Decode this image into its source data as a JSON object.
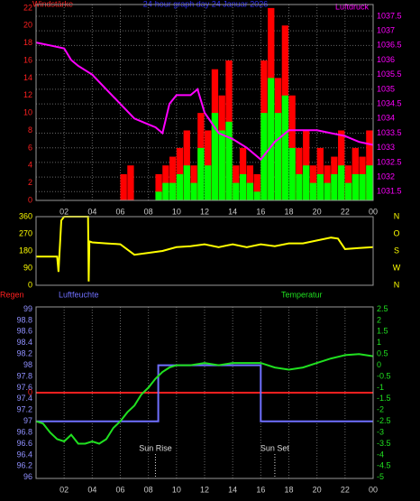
{
  "chart_data": [
    {
      "type": "bar-line",
      "title": "24-hour graph day 24 Januar 2026",
      "ylabel": "Windstärke",
      "y2label": "Luftdruck",
      "xlim": [
        0,
        24
      ],
      "xticks": [
        {
          "value": 2,
          "label": "02"
        },
        {
          "value": 4,
          "label": "04"
        },
        {
          "value": 6,
          "label": "06"
        },
        {
          "value": 8,
          "label": "08"
        },
        10,
        12,
        14,
        16,
        18,
        20,
        22,
        {
          "value": 24,
          "label": "00"
        }
      ],
      "ylim": [
        0,
        22.4
      ],
      "yticks": [
        0,
        2,
        4,
        6,
        8,
        10,
        12,
        14,
        16,
        18,
        20,
        22
      ],
      "y2lim": [
        1031.2,
        1037.9
      ],
      "y2ticks": [
        1031.5,
        1032,
        1032.5,
        1033,
        1033.5,
        1034,
        1034.5,
        1035,
        1035.5,
        1036,
        1036.5,
        1037,
        1037.5
      ],
      "grid": true,
      "bar_x": [
        0,
        0.5,
        1,
        1.5,
        2,
        2.5,
        3,
        3.5,
        4,
        4.5,
        5,
        5.5,
        6,
        6.5,
        7,
        7.5,
        8,
        8.5,
        9,
        9.5,
        10,
        10.5,
        11,
        11.5,
        12,
        12.5,
        13,
        13.5,
        14,
        14.5,
        15,
        15.5,
        16,
        16.5,
        17,
        17.5,
        18,
        18.5,
        19,
        19.5,
        20,
        20.5,
        21,
        21.5,
        22,
        22.5,
        23,
        23.5
      ],
      "series": [
        {
          "name": "Böen",
          "color": "#ff0000",
          "kind": "bar",
          "values": [
            0,
            0,
            0,
            0,
            0,
            0,
            0,
            0,
            0,
            0,
            0,
            0,
            3,
            4,
            0,
            0,
            0,
            3,
            4,
            5,
            6,
            8,
            4,
            10,
            8,
            15,
            12,
            16,
            4,
            6,
            4,
            3,
            16,
            22,
            14,
            20,
            12,
            6,
            8,
            4,
            6,
            4,
            5,
            8,
            4,
            6,
            5,
            8
          ]
        },
        {
          "name": "Wind",
          "color": "#00ff00",
          "kind": "bar",
          "values": [
            0,
            0,
            0,
            0,
            0,
            0,
            0,
            0,
            0,
            0,
            0,
            0,
            0,
            0,
            0,
            0,
            0,
            1,
            2,
            2,
            3,
            4,
            2,
            6,
            4,
            10,
            8,
            9,
            2,
            3,
            2,
            1,
            10,
            14,
            10,
            12,
            6,
            3,
            4,
            2,
            3,
            2,
            3,
            4,
            2,
            3,
            3,
            4
          ]
        },
        {
          "name": "Luftdruck",
          "color": "#ff00ff",
          "kind": "line",
          "axis": "y2",
          "x": [
            0,
            1,
            2,
            2.5,
            3,
            4,
            5,
            6,
            7,
            8,
            8.5,
            9,
            9.5,
            10,
            11,
            11.5,
            12,
            13,
            14,
            15,
            16,
            17,
            18,
            19,
            20,
            21,
            22,
            23,
            24
          ],
          "values": [
            1036.6,
            1036.5,
            1036.4,
            1036.0,
            1035.8,
            1035.5,
            1035.0,
            1034.5,
            1034.0,
            1033.8,
            1033.7,
            1033.5,
            1034.5,
            1034.8,
            1034.8,
            1035.0,
            1034.2,
            1033.5,
            1033.3,
            1033.0,
            1032.6,
            1033.2,
            1033.6,
            1033.6,
            1033.6,
            1033.5,
            1033.4,
            1033.2,
            1033.1
          ]
        }
      ]
    },
    {
      "type": "line",
      "xlim": [
        0,
        24
      ],
      "ylim": [
        0,
        360
      ],
      "yticks": [
        0,
        90,
        180,
        270,
        360
      ],
      "y2ticks_text": [
        "N",
        "W",
        "S",
        "O",
        "N"
      ],
      "series": [
        {
          "name": "Windrichtung",
          "color": "#ffff00",
          "x": [
            0,
            1.5,
            1.6,
            1.8,
            2,
            3.7,
            3.75,
            3.8,
            4,
            5,
            6,
            7,
            8,
            9,
            10,
            11,
            12,
            13,
            14,
            15,
            16,
            17,
            18,
            19,
            20,
            21,
            21.5,
            22,
            23,
            24
          ],
          "values": [
            150,
            150,
            70,
            340,
            360,
            360,
            20,
            230,
            225,
            220,
            215,
            160,
            170,
            180,
            200,
            205,
            215,
            200,
            215,
            200,
            215,
            205,
            220,
            220,
            235,
            250,
            245,
            190,
            195,
            200
          ]
        }
      ]
    },
    {
      "type": "line",
      "xlim": [
        0,
        24
      ],
      "xticks": [
        {
          "value": 2,
          "label": "02"
        },
        {
          "value": 4,
          "label": "04"
        },
        {
          "value": 6,
          "label": "06"
        },
        {
          "value": 8,
          "label": "08"
        },
        10,
        12,
        14,
        16,
        18,
        20,
        22,
        {
          "value": 24,
          "label": "00"
        }
      ],
      "ylim": [
        95.98,
        99.04
      ],
      "yticks": [
        99,
        {
          "value": 98.8,
          "label": "98.8"
        },
        {
          "value": 98.6,
          "label": "98.6"
        },
        {
          "value": 98.4,
          "label": "98.4"
        },
        {
          "value": 98.2,
          "label": "98.2"
        },
        98,
        {
          "value": 97.8,
          "label": "97.8"
        },
        {
          "value": 97.6,
          "label": "97.6"
        },
        {
          "value": 97.4,
          "label": "97.4"
        },
        {
          "value": 97.2,
          "label": "97.2"
        },
        97,
        {
          "value": 96.8,
          "label": "96.8"
        },
        {
          "value": 96.6,
          "label": "96.6"
        },
        {
          "value": 96.4,
          "label": "96.4"
        },
        {
          "value": 96.2,
          "label": "96.2"
        },
        96
      ],
      "y2lim": [
        -5.05,
        2.6
      ],
      "y2ticks": [
        2.5,
        2,
        1.5,
        1,
        0.5,
        0,
        -0.5,
        -1,
        -1.5,
        -2,
        -2.5,
        -3,
        -3.5,
        -4,
        -4.5,
        -5
      ],
      "y3lim": [
        -0.75,
        0.75
      ],
      "y3ticks": [
        0
      ],
      "series": [
        {
          "name": "Regen",
          "color": "#ff2020",
          "axis": "y3",
          "x": [
            0,
            24
          ],
          "values": [
            0,
            0
          ]
        },
        {
          "name": "Luftfeuchte",
          "color": "#7070ff",
          "x": [
            0,
            8.7,
            8.7,
            16,
            16,
            24
          ],
          "values": [
            97,
            97,
            98,
            98,
            97,
            97
          ]
        },
        {
          "name": "Temperatur",
          "color": "#20e020",
          "axis": "y2",
          "x": [
            0,
            0.5,
            1,
            1.5,
            2,
            2.5,
            3,
            3.5,
            4,
            4.5,
            5,
            5.5,
            6,
            6.5,
            7,
            7.5,
            8,
            8.5,
            9,
            9.5,
            10,
            11,
            12,
            13,
            14,
            15,
            16,
            17,
            18,
            19,
            20,
            21,
            22,
            23,
            24
          ],
          "values": [
            -2.5,
            -2.6,
            -3.0,
            -3.3,
            -3.4,
            -3.1,
            -3.5,
            -3.5,
            -3.4,
            -3.5,
            -3.3,
            -2.8,
            -2.5,
            -2.1,
            -1.8,
            -1.3,
            -1.0,
            -0.6,
            -0.3,
            -0.1,
            0.0,
            0.0,
            0.1,
            0.0,
            0.1,
            0.1,
            0.1,
            -0.1,
            -0.2,
            -0.1,
            0.1,
            0.3,
            0.45,
            0.5,
            0.4
          ]
        }
      ],
      "annotations": [
        {
          "text": "Sun Rise",
          "x": 8.5
        },
        {
          "text": "Sun Set",
          "x": 17
        }
      ]
    }
  ]
}
